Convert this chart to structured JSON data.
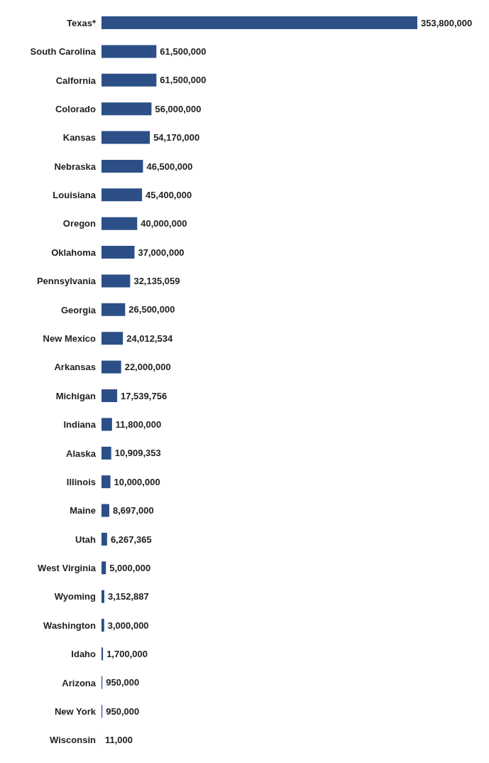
{
  "chart_data": {
    "type": "bar",
    "orientation": "horizontal",
    "grid": false,
    "legend": false,
    "color": "#2b4f86",
    "categories": [
      "Texas*",
      "South Carolina",
      "Calfornia",
      "Colorado",
      "Kansas",
      "Nebraska",
      "Louisiana",
      "Oregon",
      "Oklahoma",
      "Pennsylvania",
      "Georgia",
      "New Mexico",
      "Arkansas",
      "Michigan",
      "Indiana",
      "Alaska",
      "Illinois",
      "Maine",
      "Utah",
      "West Virginia",
      "Wyoming",
      "Washington",
      "Idaho",
      "Arizona",
      "New York",
      "Wisconsin"
    ],
    "values": [
      353800000,
      61500000,
      61500000,
      56000000,
      54170000,
      46500000,
      45400000,
      40000000,
      37000000,
      32135059,
      26500000,
      24012534,
      22000000,
      17539756,
      11800000,
      10909353,
      10000000,
      8697000,
      6267365,
      5000000,
      3152887,
      3000000,
      1700000,
      950000,
      950000,
      11000
    ],
    "value_labels": [
      "353,800,000",
      "61,500,000",
      "61,500,000",
      "56,000,000",
      "54,170,000",
      "46,500,000",
      "45,400,000",
      "40,000,000",
      "37,000,000",
      "32,135,059",
      "26,500,000",
      "24,012,534",
      "22,000,000",
      "17,539,756",
      "11,800,000",
      "10,909,353",
      "10,000,000",
      "8,697,000",
      "6,267,365",
      "5,000,000",
      "3,152,887",
      "3,000,000",
      "1,700,000",
      "950,000",
      "950,000",
      "11,000"
    ]
  }
}
